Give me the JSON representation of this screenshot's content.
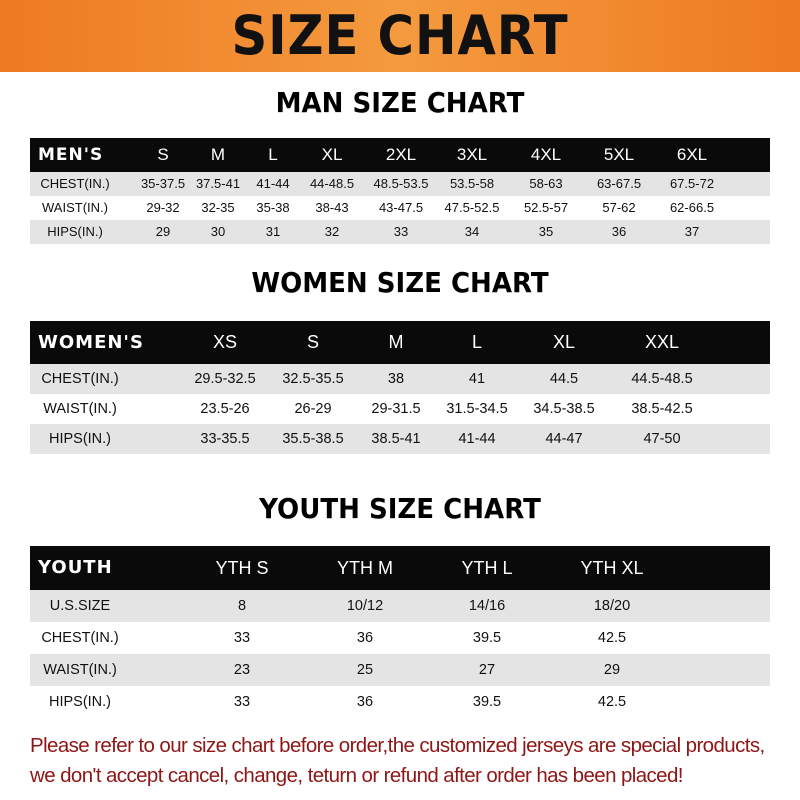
{
  "title": "SIZE CHART",
  "colors": {
    "banner": "#ee7a22",
    "header_row": "#0a0a0a",
    "stripe": "#e4e4e4",
    "notice": "#8e1616"
  },
  "men": {
    "title": "MAN SIZE CHART",
    "header": [
      "MEN'S",
      "S",
      "M",
      "L",
      "XL",
      "2XL",
      "3XL",
      "4XL",
      "5XL",
      "6XL"
    ],
    "rows": [
      [
        "CHEST(IN.)",
        "35-37.5",
        "37.5-41",
        "41-44",
        "44-48.5",
        "48.5-53.5",
        "53.5-58",
        "58-63",
        "63-67.5",
        "67.5-72"
      ],
      [
        "WAIST(IN.)",
        "29-32",
        "32-35",
        "35-38",
        "38-43",
        "43-47.5",
        "47.5-52.5",
        "52.5-57",
        "57-62",
        "62-66.5"
      ],
      [
        "HIPS(IN.)",
        "29",
        "30",
        "31",
        "32",
        "33",
        "34",
        "35",
        "36",
        "37"
      ]
    ]
  },
  "women": {
    "title": "WOMEN SIZE CHART",
    "header": [
      "WOMEN'S",
      "XS",
      "S",
      "M",
      "L",
      "XL",
      "XXL"
    ],
    "rows": [
      [
        "CHEST(IN.)",
        "29.5-32.5",
        "32.5-35.5",
        "38",
        "41",
        "44.5",
        "44.5-48.5"
      ],
      [
        "WAIST(IN.)",
        "23.5-26",
        "26-29",
        "29-31.5",
        "31.5-34.5",
        "34.5-38.5",
        "38.5-42.5"
      ],
      [
        "HIPS(IN.)",
        "33-35.5",
        "35.5-38.5",
        "38.5-41",
        "41-44",
        "44-47",
        "47-50"
      ]
    ]
  },
  "youth": {
    "title": "YOUTH SIZE CHART",
    "header": [
      "YOUTH",
      "YTH S",
      "YTH M",
      "YTH L",
      "YTH XL"
    ],
    "rows": [
      [
        "U.S.SIZE",
        "8",
        "10/12",
        "14/16",
        "18/20"
      ],
      [
        "CHEST(IN.)",
        "33",
        "36",
        "39.5",
        "42.5"
      ],
      [
        "WAIST(IN.)",
        "23",
        "25",
        "27",
        "29"
      ],
      [
        "HIPS(IN.)",
        "33",
        "36",
        "39.5",
        "42.5"
      ]
    ]
  },
  "notice": {
    "line1": "Please refer to our size chart before order,the customized jerseys are special products,",
    "line2": "we don't accept cancel, change, teturn or refund after order has been placed!"
  }
}
